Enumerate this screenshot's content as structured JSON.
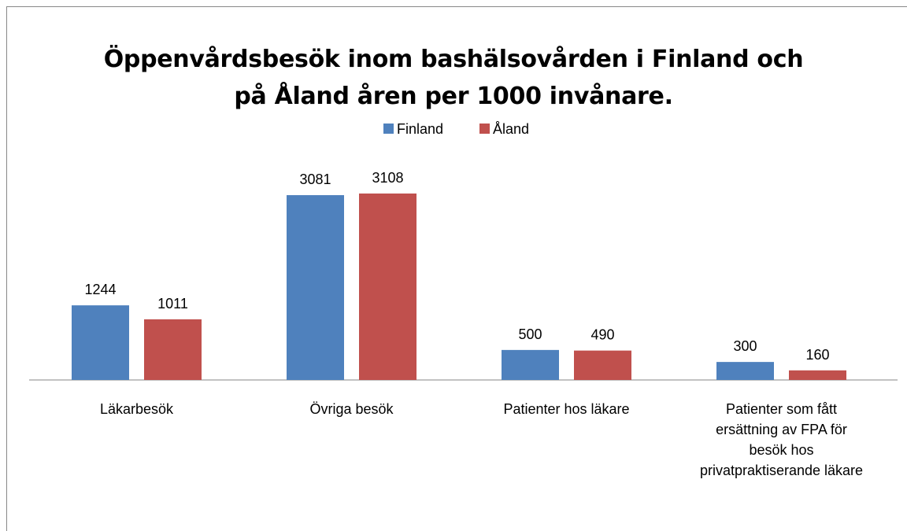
{
  "chart_data": {
    "type": "bar",
    "title": "Öppenvårdsbesök inom bashälsovården i Finland och på Åland åren per 1000 invånare.",
    "categories": [
      "Läkarbesök",
      "Övriga besök",
      "Patienter hos läkare",
      "Patienter som fått ersättning av FPA för besök hos privatpraktiserande läkare"
    ],
    "series": [
      {
        "name": "Finland",
        "color": "#4f81bd",
        "values": [
          1244,
          3081,
          500,
          300
        ]
      },
      {
        "name": "Åland",
        "color": "#c0504d",
        "values": [
          1011,
          3108,
          490,
          160
        ]
      }
    ],
    "legend": "top"
  }
}
